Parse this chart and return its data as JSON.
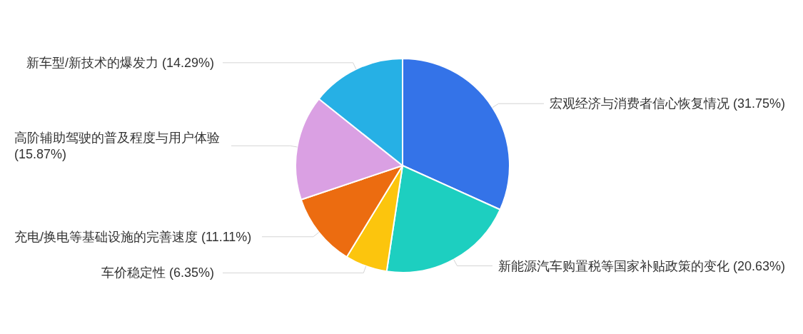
{
  "chart_data": {
    "type": "pie",
    "categories": [
      "宏观经济与消费者信心恢复情况",
      "新能源汽车购置税等国家补贴政策的变化",
      "车价稳定性",
      "充电/换电等基础设施的完善速度",
      "高阶辅助驾驶的普及程度与用户体验",
      "新车型/新技术的爆发力"
    ],
    "values": [
      31.75,
      20.63,
      6.35,
      11.11,
      15.87,
      14.29
    ],
    "colors": [
      "#3473e8",
      "#1dcfc0",
      "#fcc50d",
      "#ec6c10",
      "#daa0e3",
      "#26b0e5"
    ],
    "value_labels": [
      "(31.75%)",
      "(20.63%)",
      "(6.35%)",
      "(11.11%)",
      "(15.87%)",
      "(14.29%)"
    ]
  }
}
